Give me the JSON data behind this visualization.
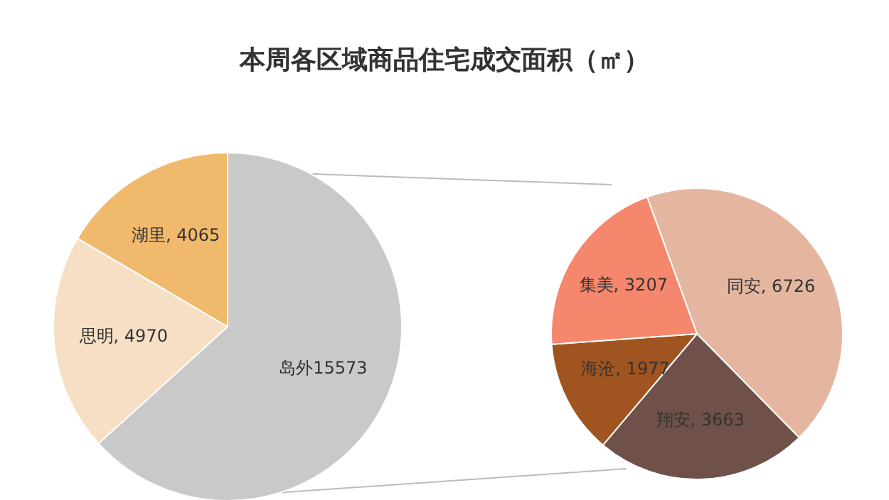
{
  "chart_data": [
    {
      "type": "pie",
      "title": "本周各区域商品住宅成交面积（㎡）",
      "categories": [
        "岛外",
        "思明",
        "湖里"
      ],
      "values": [
        15573,
        4970,
        4065
      ],
      "colors": [
        "#c9c9c9",
        "#f6dfc4",
        "#f1b96c"
      ],
      "value_labels": [
        "15573",
        ", 4970",
        ", 4065"
      ]
    },
    {
      "type": "pie",
      "categories": [
        "同安",
        "翔安",
        "海沧",
        "集美"
      ],
      "values": [
        6726,
        3663,
        1977,
        3207
      ],
      "colors": [
        "#e4b6a0",
        "#6f5149",
        "#a0541f",
        "#f5876c"
      ],
      "value_labels": [
        ", 6726",
        ", 3663",
        ", 1977",
        ", 3207"
      ]
    }
  ]
}
